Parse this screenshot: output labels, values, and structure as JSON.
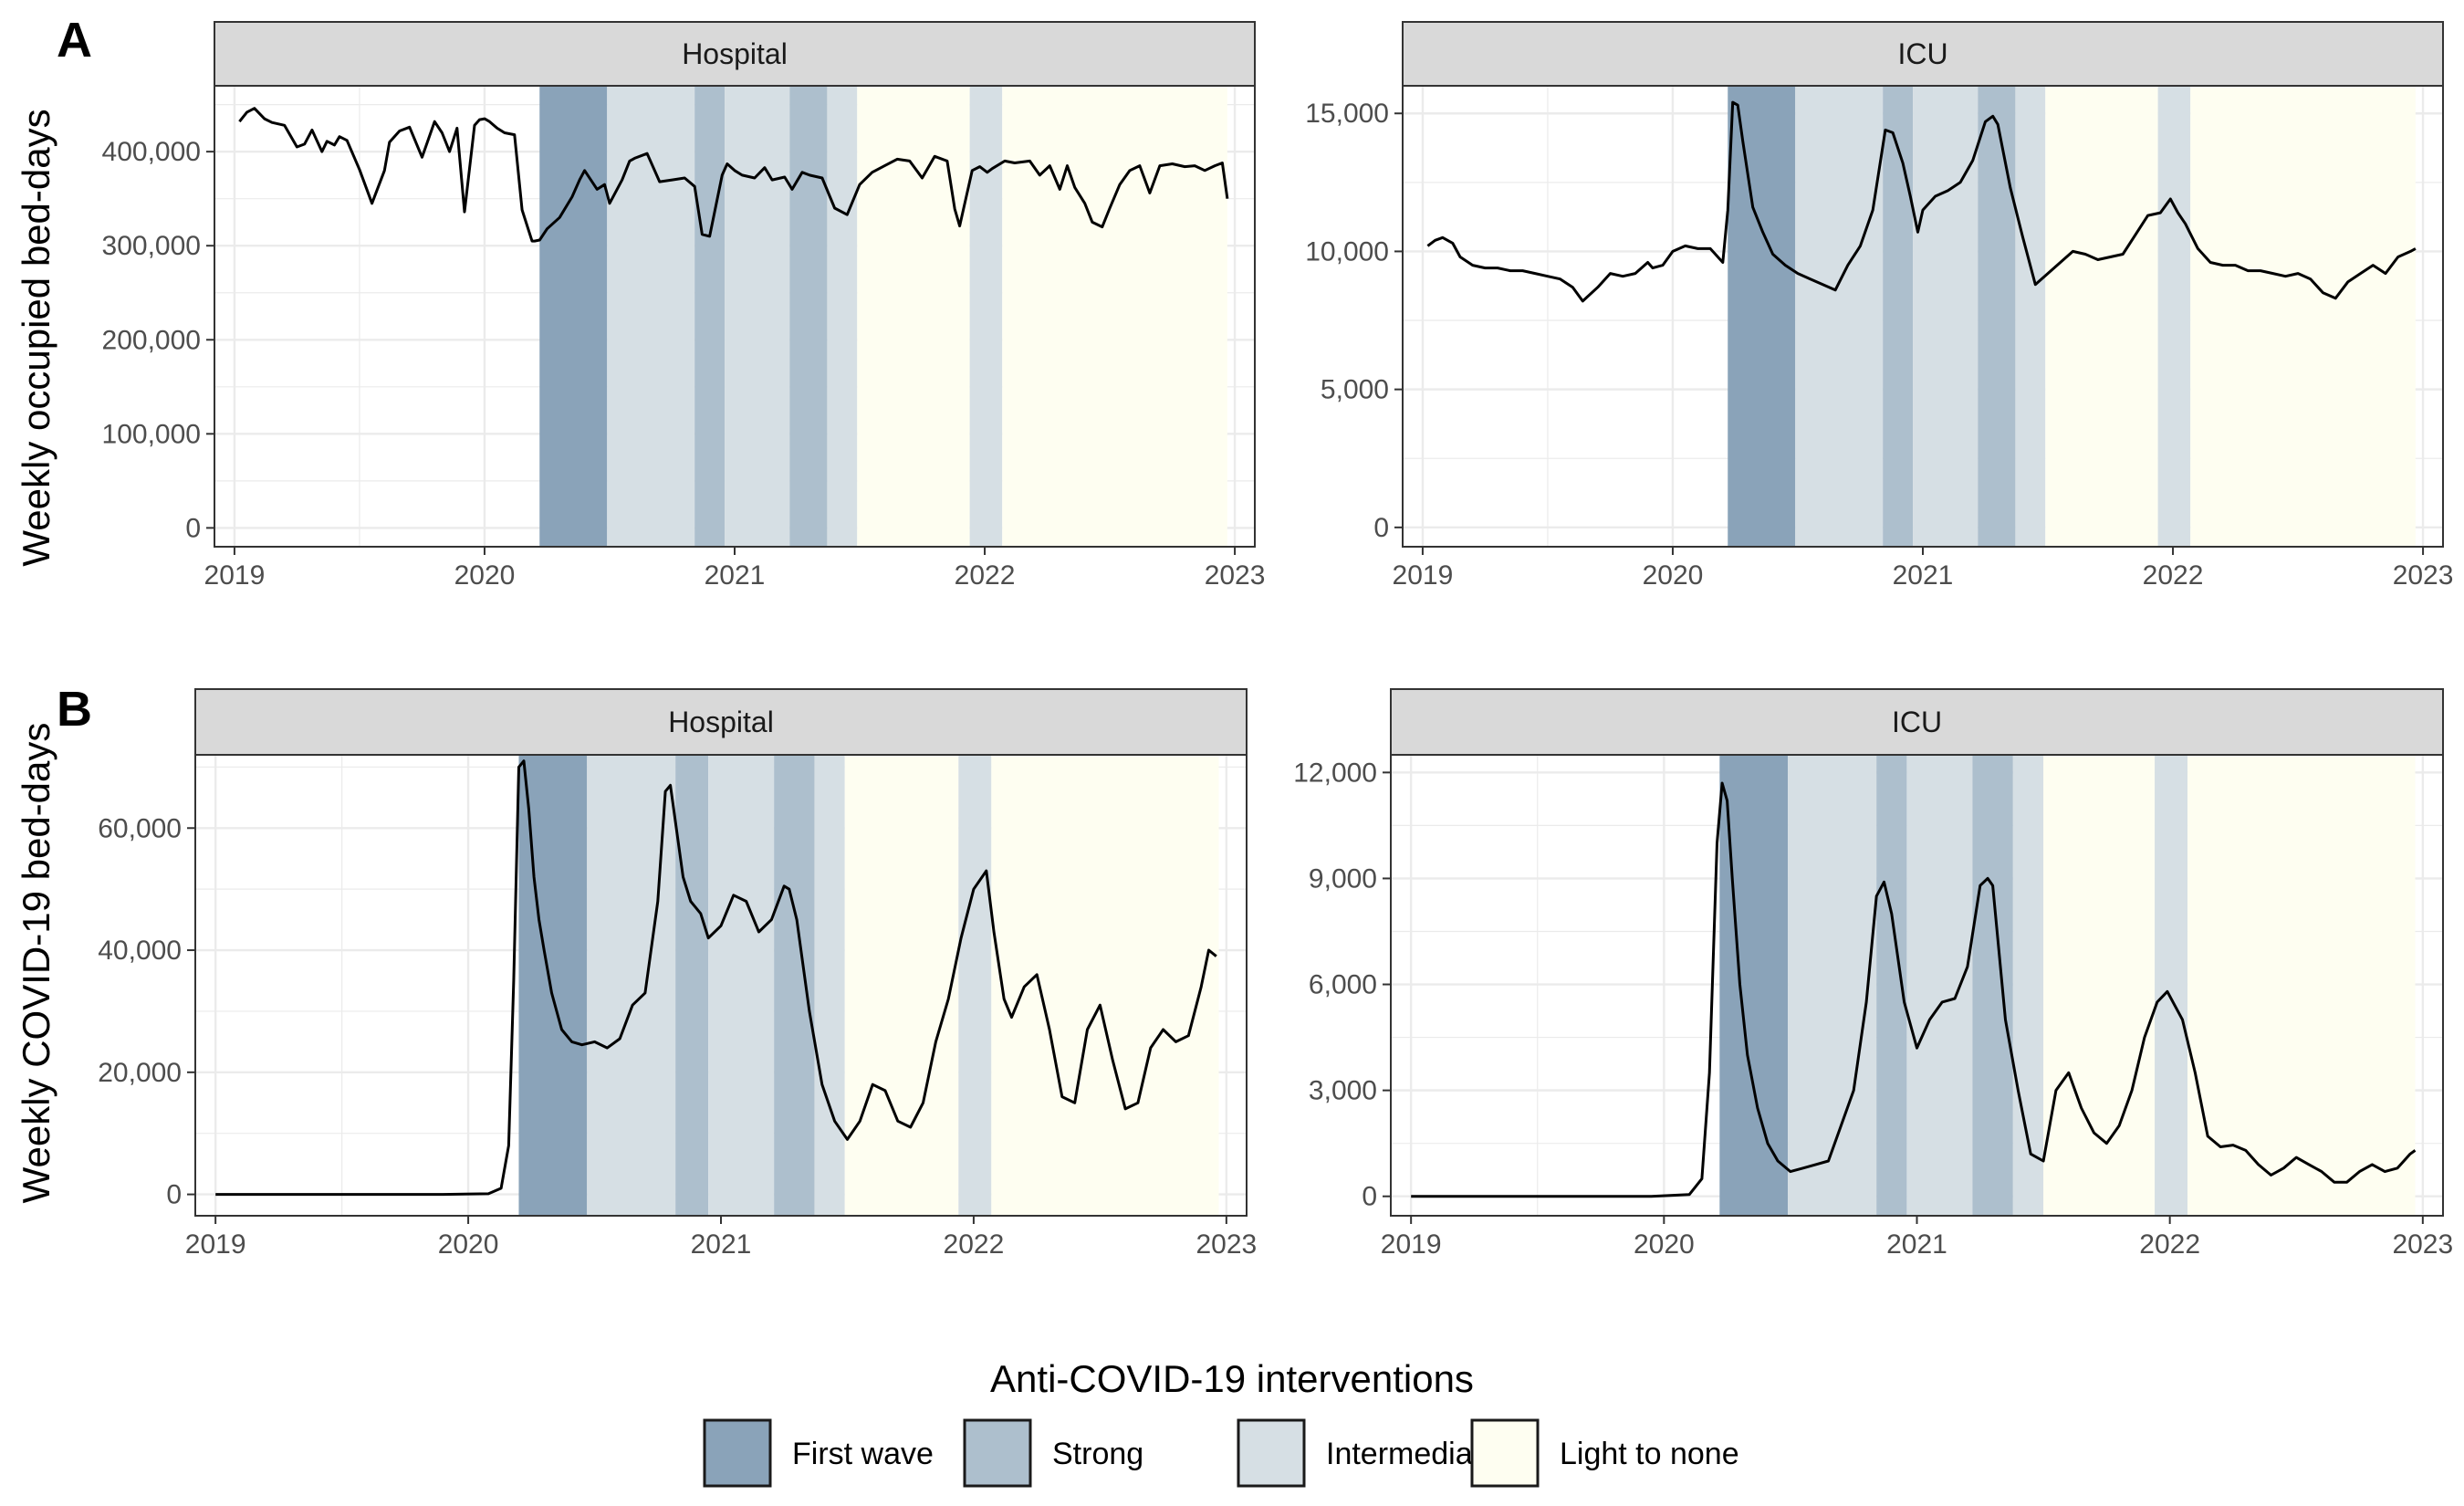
{
  "legend": {
    "title": "Anti-COVID-19 interventions",
    "items": [
      {
        "label": "First wave",
        "color": "#8aa3b9"
      },
      {
        "label": "Strong",
        "color": "#adbfcd"
      },
      {
        "label": "Intermediary",
        "color": "#d6dfe4"
      },
      {
        "label": "Light to none",
        "color": "#fefef1"
      }
    ]
  },
  "rows": [
    {
      "tag": "A",
      "ylabel": "Weekly occupied bed-days"
    },
    {
      "tag": "B",
      "ylabel": "Weekly COVID-19 bed-days"
    }
  ],
  "chart_data": [
    {
      "type": "line",
      "strip": "Hospital",
      "xlim": [
        2018.92,
        2023.08
      ],
      "ylim": [
        -20000,
        470000
      ],
      "x_ticks": [
        2019,
        2020,
        2021,
        2022,
        2023
      ],
      "x_tick_labels": [
        "2019",
        "2020",
        "2021",
        "2022",
        "2023"
      ],
      "y_ticks": [
        0,
        100000,
        200000,
        300000,
        400000
      ],
      "y_tick_labels": [
        "0",
        "100,000",
        "200,000",
        "300,000",
        "400,000"
      ],
      "bands": [
        {
          "from": 2020.22,
          "to": 2020.49,
          "level": "First wave"
        },
        {
          "from": 2020.49,
          "to": 2020.84,
          "level": "Intermediary"
        },
        {
          "from": 2020.84,
          "to": 2020.96,
          "level": "Strong"
        },
        {
          "from": 2020.96,
          "to": 2021.22,
          "level": "Intermediary"
        },
        {
          "from": 2021.22,
          "to": 2021.37,
          "level": "Strong"
        },
        {
          "from": 2021.37,
          "to": 2021.49,
          "level": "Intermediary"
        },
        {
          "from": 2021.49,
          "to": 2021.94,
          "level": "Light to none"
        },
        {
          "from": 2021.94,
          "to": 2022.07,
          "level": "Intermediary"
        },
        {
          "from": 2022.07,
          "to": 2022.97,
          "level": "Light to none"
        }
      ],
      "x": [
        2019.02,
        2019.05,
        2019.08,
        2019.12,
        2019.15,
        2019.2,
        2019.25,
        2019.28,
        2019.31,
        2019.35,
        2019.37,
        2019.4,
        2019.42,
        2019.45,
        2019.5,
        2019.55,
        2019.6,
        2019.62,
        2019.66,
        2019.7,
        2019.75,
        2019.8,
        2019.83,
        2019.86,
        2019.89,
        2019.92,
        2019.96,
        2019.98,
        2020.0,
        2020.02,
        2020.05,
        2020.08,
        2020.12,
        2020.15,
        2020.19,
        2020.2,
        2020.22,
        2020.25,
        2020.3,
        2020.35,
        2020.38,
        2020.4,
        2020.45,
        2020.48,
        2020.5,
        2020.55,
        2020.58,
        2020.6,
        2020.65,
        2020.7,
        2020.75,
        2020.8,
        2020.84,
        2020.87,
        2020.9,
        2020.95,
        2020.97,
        2021.0,
        2021.03,
        2021.08,
        2021.12,
        2021.15,
        2021.2,
        2021.23,
        2021.27,
        2021.3,
        2021.35,
        2021.4,
        2021.45,
        2021.5,
        2021.55,
        2021.6,
        2021.65,
        2021.7,
        2021.75,
        2021.8,
        2021.85,
        2021.88,
        2021.9,
        2021.95,
        2021.98,
        2022.01,
        2022.03,
        2022.08,
        2022.12,
        2022.18,
        2022.22,
        2022.26,
        2022.3,
        2022.33,
        2022.36,
        2022.4,
        2022.43,
        2022.47,
        2022.5,
        2022.54,
        2022.58,
        2022.62,
        2022.66,
        2022.7,
        2022.75,
        2022.8,
        2022.84,
        2022.88,
        2022.92,
        2022.95,
        2022.97
      ],
      "values": [
        432000,
        442000,
        446000,
        435000,
        431000,
        428000,
        405000,
        408000,
        423000,
        400000,
        411000,
        407000,
        416000,
        412000,
        381000,
        345000,
        380000,
        410000,
        422000,
        426000,
        394000,
        432000,
        420000,
        400000,
        425000,
        336000,
        428000,
        434000,
        435000,
        432000,
        425000,
        420000,
        418000,
        338000,
        305000,
        305000,
        306000,
        318000,
        330000,
        352000,
        370000,
        380000,
        360000,
        365000,
        345000,
        370000,
        390000,
        393000,
        398000,
        368000,
        370000,
        372000,
        363000,
        312000,
        310000,
        375000,
        387000,
        380000,
        375000,
        372000,
        383000,
        370000,
        373000,
        360000,
        378000,
        375000,
        372000,
        340000,
        333000,
        365000,
        378000,
        385000,
        392000,
        390000,
        372000,
        395000,
        390000,
        339000,
        321000,
        380000,
        384000,
        378000,
        382000,
        390000,
        388000,
        390000,
        375000,
        385000,
        360000,
        385000,
        362000,
        345000,
        325000,
        320000,
        340000,
        365000,
        380000,
        385000,
        356000,
        385000,
        387000,
        384000,
        385000,
        380000,
        385000,
        388000,
        350000
      ]
    },
    {
      "type": "line",
      "strip": "ICU",
      "xlim": [
        2018.92,
        2023.08
      ],
      "ylim": [
        -700,
        16000
      ],
      "x_ticks": [
        2019,
        2020,
        2021,
        2022,
        2023
      ],
      "x_tick_labels": [
        "2019",
        "2020",
        "2021",
        "2022",
        "2023"
      ],
      "y_ticks": [
        0,
        5000,
        10000,
        15000
      ],
      "y_tick_labels": [
        "0",
        "5,000",
        "10,000",
        "15,000"
      ],
      "bands": [
        {
          "from": 2020.22,
          "to": 2020.49,
          "level": "First wave"
        },
        {
          "from": 2020.49,
          "to": 2020.84,
          "level": "Intermediary"
        },
        {
          "from": 2020.84,
          "to": 2020.96,
          "level": "Strong"
        },
        {
          "from": 2020.96,
          "to": 2021.22,
          "level": "Intermediary"
        },
        {
          "from": 2021.22,
          "to": 2021.37,
          "level": "Strong"
        },
        {
          "from": 2021.37,
          "to": 2021.49,
          "level": "Intermediary"
        },
        {
          "from": 2021.49,
          "to": 2021.94,
          "level": "Light to none"
        },
        {
          "from": 2021.94,
          "to": 2022.07,
          "level": "Intermediary"
        },
        {
          "from": 2022.07,
          "to": 2022.97,
          "level": "Light to none"
        }
      ],
      "x": [
        2019.02,
        2019.05,
        2019.08,
        2019.12,
        2019.15,
        2019.2,
        2019.25,
        2019.3,
        2019.35,
        2019.4,
        2019.45,
        2019.5,
        2019.55,
        2019.6,
        2019.64,
        2019.7,
        2019.75,
        2019.8,
        2019.85,
        2019.9,
        2019.92,
        2019.96,
        2020.0,
        2020.05,
        2020.1,
        2020.15,
        2020.2,
        2020.22,
        2020.24,
        2020.26,
        2020.28,
        2020.32,
        2020.36,
        2020.4,
        2020.45,
        2020.5,
        2020.55,
        2020.6,
        2020.65,
        2020.7,
        2020.75,
        2020.8,
        2020.85,
        2020.88,
        2020.92,
        2020.95,
        2020.98,
        2021.0,
        2021.05,
        2021.1,
        2021.15,
        2021.2,
        2021.25,
        2021.28,
        2021.3,
        2021.35,
        2021.4,
        2021.45,
        2021.5,
        2021.55,
        2021.6,
        2021.65,
        2021.7,
        2021.75,
        2021.8,
        2021.85,
        2021.9,
        2021.95,
        2021.99,
        2022.02,
        2022.05,
        2022.1,
        2022.15,
        2022.2,
        2022.25,
        2022.3,
        2022.35,
        2022.4,
        2022.45,
        2022.5,
        2022.55,
        2022.6,
        2022.65,
        2022.7,
        2022.75,
        2022.8,
        2022.85,
        2022.9,
        2022.95,
        2022.97
      ],
      "values": [
        10200,
        10400,
        10500,
        10300,
        9800,
        9500,
        9400,
        9400,
        9300,
        9300,
        9200,
        9100,
        9000,
        8700,
        8200,
        8700,
        9200,
        9100,
        9200,
        9600,
        9400,
        9500,
        10000,
        10200,
        10100,
        10100,
        9600,
        11500,
        15400,
        15300,
        14000,
        11600,
        10700,
        9900,
        9500,
        9200,
        9000,
        8800,
        8600,
        9500,
        10200,
        11500,
        14400,
        14300,
        13200,
        12000,
        10700,
        11500,
        12000,
        12200,
        12500,
        13300,
        14700,
        14900,
        14600,
        12300,
        10500,
        8800,
        9200,
        9600,
        10000,
        9900,
        9700,
        9800,
        9900,
        10600,
        11300,
        11400,
        11900,
        11400,
        11000,
        10100,
        9600,
        9500,
        9500,
        9300,
        9300,
        9200,
        9100,
        9200,
        9000,
        8500,
        8300,
        8900,
        9200,
        9500,
        9200,
        9800,
        10000,
        10100
      ]
    },
    {
      "type": "line",
      "strip": "Hospital",
      "xlim": [
        2018.92,
        2023.08
      ],
      "ylim": [
        -3500,
        72000
      ],
      "x_ticks": [
        2019,
        2020,
        2021,
        2022,
        2023
      ],
      "x_tick_labels": [
        "2019",
        "2020",
        "2021",
        "2022",
        "2023"
      ],
      "y_ticks": [
        0,
        20000,
        40000,
        60000
      ],
      "y_tick_labels": [
        "0",
        "20,000",
        "40,000",
        "60,000"
      ],
      "bands": [
        {
          "from": 2020.2,
          "to": 2020.47,
          "level": "First wave"
        },
        {
          "from": 2020.47,
          "to": 2020.82,
          "level": "Intermediary"
        },
        {
          "from": 2020.82,
          "to": 2020.95,
          "level": "Strong"
        },
        {
          "from": 2020.95,
          "to": 2021.21,
          "level": "Intermediary"
        },
        {
          "from": 2021.21,
          "to": 2021.37,
          "level": "Strong"
        },
        {
          "from": 2021.37,
          "to": 2021.49,
          "level": "Intermediary"
        },
        {
          "from": 2021.49,
          "to": 2021.94,
          "level": "Light to none"
        },
        {
          "from": 2021.94,
          "to": 2022.07,
          "level": "Intermediary"
        },
        {
          "from": 2022.07,
          "to": 2022.97,
          "level": "Light to none"
        }
      ],
      "x": [
        2019.0,
        2019.5,
        2019.9,
        2020.08,
        2020.13,
        2020.16,
        2020.18,
        2020.2,
        2020.22,
        2020.24,
        2020.26,
        2020.28,
        2020.3,
        2020.33,
        2020.37,
        2020.41,
        2020.45,
        2020.5,
        2020.55,
        2020.6,
        2020.65,
        2020.7,
        2020.75,
        2020.78,
        2020.8,
        2020.85,
        2020.88,
        2020.92,
        2020.95,
        2021.0,
        2021.05,
        2021.1,
        2021.15,
        2021.2,
        2021.25,
        2021.27,
        2021.3,
        2021.35,
        2021.4,
        2021.45,
        2021.5,
        2021.55,
        2021.6,
        2021.65,
        2021.7,
        2021.75,
        2021.8,
        2021.85,
        2021.9,
        2021.95,
        2022.0,
        2022.05,
        2022.08,
        2022.12,
        2022.15,
        2022.2,
        2022.25,
        2022.3,
        2022.35,
        2022.4,
        2022.45,
        2022.5,
        2022.55,
        2022.6,
        2022.65,
        2022.7,
        2022.75,
        2022.8,
        2022.85,
        2022.9,
        2022.93,
        2022.96
      ],
      "values": [
        0,
        0,
        0,
        100,
        1000,
        8000,
        35000,
        70000,
        71000,
        63000,
        52000,
        45000,
        40000,
        33000,
        27000,
        25000,
        24500,
        25000,
        24000,
        25500,
        31000,
        33000,
        48000,
        66000,
        67000,
        52000,
        48000,
        46000,
        42000,
        44000,
        49000,
        48000,
        43000,
        45000,
        50500,
        50000,
        45000,
        30000,
        18000,
        12000,
        9000,
        12000,
        18000,
        17000,
        12000,
        11000,
        15000,
        25000,
        32000,
        42000,
        50000,
        53000,
        43000,
        32000,
        29000,
        34000,
        36000,
        27000,
        16000,
        15000,
        27000,
        31000,
        22000,
        14000,
        15000,
        24000,
        27000,
        25000,
        26000,
        34000,
        40000,
        39000
      ]
    },
    {
      "type": "line",
      "strip": "ICU",
      "xlim": [
        2018.92,
        2023.08
      ],
      "ylim": [
        -550,
        12500
      ],
      "x_ticks": [
        2019,
        2020,
        2021,
        2022,
        2023
      ],
      "x_tick_labels": [
        "2019",
        "2020",
        "2021",
        "2022",
        "2023"
      ],
      "y_ticks": [
        0,
        3000,
        6000,
        9000,
        12000
      ],
      "y_tick_labels": [
        "0",
        "3,000",
        "6,000",
        "9,000",
        "12,000"
      ],
      "bands": [
        {
          "from": 2020.22,
          "to": 2020.49,
          "level": "First wave"
        },
        {
          "from": 2020.49,
          "to": 2020.84,
          "level": "Intermediary"
        },
        {
          "from": 2020.84,
          "to": 2020.96,
          "level": "Strong"
        },
        {
          "from": 2020.96,
          "to": 2021.22,
          "level": "Intermediary"
        },
        {
          "from": 2021.22,
          "to": 2021.38,
          "level": "Strong"
        },
        {
          "from": 2021.38,
          "to": 2021.5,
          "level": "Intermediary"
        },
        {
          "from": 2021.5,
          "to": 2021.94,
          "level": "Light to none"
        },
        {
          "from": 2021.94,
          "to": 2022.07,
          "level": "Intermediary"
        },
        {
          "from": 2022.07,
          "to": 2022.97,
          "level": "Light to none"
        }
      ],
      "x": [
        2019.0,
        2019.5,
        2019.95,
        2020.1,
        2020.15,
        2020.18,
        2020.21,
        2020.23,
        2020.25,
        2020.27,
        2020.3,
        2020.33,
        2020.37,
        2020.41,
        2020.45,
        2020.5,
        2020.55,
        2020.6,
        2020.65,
        2020.7,
        2020.75,
        2020.8,
        2020.84,
        2020.87,
        2020.9,
        2020.95,
        2021.0,
        2021.05,
        2021.1,
        2021.15,
        2021.2,
        2021.25,
        2021.28,
        2021.3,
        2021.35,
        2021.4,
        2021.45,
        2021.5,
        2021.55,
        2021.6,
        2021.65,
        2021.7,
        2021.75,
        2021.8,
        2021.85,
        2021.9,
        2021.95,
        2021.99,
        2022.02,
        2022.05,
        2022.1,
        2022.15,
        2022.2,
        2022.25,
        2022.3,
        2022.35,
        2022.4,
        2022.45,
        2022.5,
        2022.55,
        2022.6,
        2022.65,
        2022.7,
        2022.75,
        2022.8,
        2022.85,
        2022.9,
        2022.95,
        2022.97
      ],
      "values": [
        0,
        0,
        0,
        50,
        500,
        3500,
        10000,
        11700,
        11200,
        9000,
        6000,
        4000,
        2500,
        1500,
        1000,
        700,
        800,
        900,
        1000,
        2000,
        3000,
        5500,
        8500,
        8900,
        8000,
        5500,
        4200,
        5000,
        5500,
        5600,
        6500,
        8800,
        9000,
        8800,
        5000,
        3000,
        1200,
        1000,
        3000,
        3500,
        2500,
        1800,
        1500,
        2000,
        3000,
        4500,
        5500,
        5800,
        5400,
        5000,
        3500,
        1700,
        1400,
        1450,
        1300,
        900,
        600,
        800,
        1100,
        900,
        700,
        400,
        400,
        700,
        900,
        700,
        800,
        1200,
        1300
      ]
    }
  ]
}
